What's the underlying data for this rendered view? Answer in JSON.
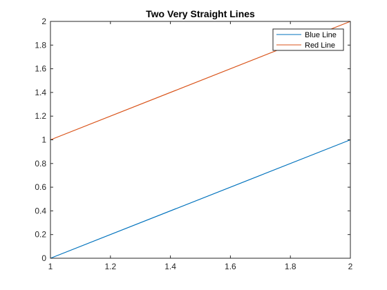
{
  "chart_data": {
    "type": "line",
    "title": "Two Very Straight Lines",
    "xlabel": "",
    "ylabel": "",
    "xlim": [
      1,
      2
    ],
    "ylim": [
      0,
      2
    ],
    "x_ticks": [
      "1",
      "1.2",
      "1.4",
      "1.6",
      "1.8",
      "2"
    ],
    "y_ticks": [
      "0",
      "0.2",
      "0.4",
      "0.6",
      "0.8",
      "1",
      "1.2",
      "1.4",
      "1.6",
      "1.8",
      "2"
    ],
    "grid": false,
    "legend_position": "top-right",
    "series": [
      {
        "name": "Blue Line",
        "color": "#0072BD",
        "x": [
          1,
          2
        ],
        "y": [
          0,
          1
        ]
      },
      {
        "name": "Red Line",
        "color": "#D95319",
        "x": [
          1,
          2
        ],
        "y": [
          1,
          2
        ]
      }
    ]
  }
}
